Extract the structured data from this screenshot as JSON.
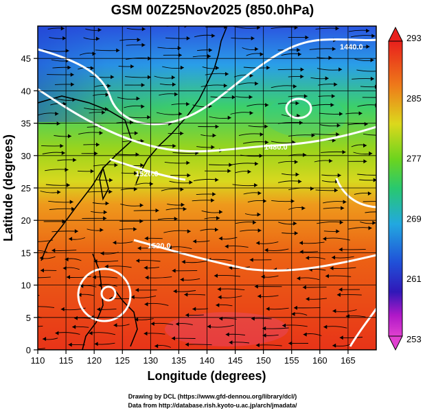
{
  "title": "GSM 00Z25Nov2025 (850.0hPa)",
  "x_axis": {
    "label": "Longitude (degrees)",
    "range": [
      110,
      170
    ],
    "ticks": [
      "110",
      "115",
      "120",
      "125",
      "130",
      "135",
      "140",
      "145",
      "150",
      "155",
      "160",
      "165"
    ]
  },
  "y_axis": {
    "label": "Latitude  (degrees)",
    "range": [
      0,
      50
    ],
    "ticks": [
      "0",
      "5",
      "10",
      "15",
      "20",
      "25",
      "30",
      "35",
      "40",
      "45"
    ]
  },
  "colorbar": {
    "ticks": [
      "293",
      "285",
      "277",
      "269",
      "261",
      "253"
    ],
    "range": [
      253,
      293
    ]
  },
  "contour_labels": [
    "1440.0",
    "1480.0",
    "1520.0",
    "1520.0",
    "1480.0",
    "1440.0"
  ],
  "credits": {
    "line1": "Drawing by DCL (https://www.gfd-dennou.org/library/dcl/)",
    "line2": "Data from http://database.rish.kyoto-u.ac.jp/arch/jmadata/"
  },
  "colors": {
    "background": "#ffffff",
    "axis": "#000000",
    "contour": "#ffffff"
  }
}
